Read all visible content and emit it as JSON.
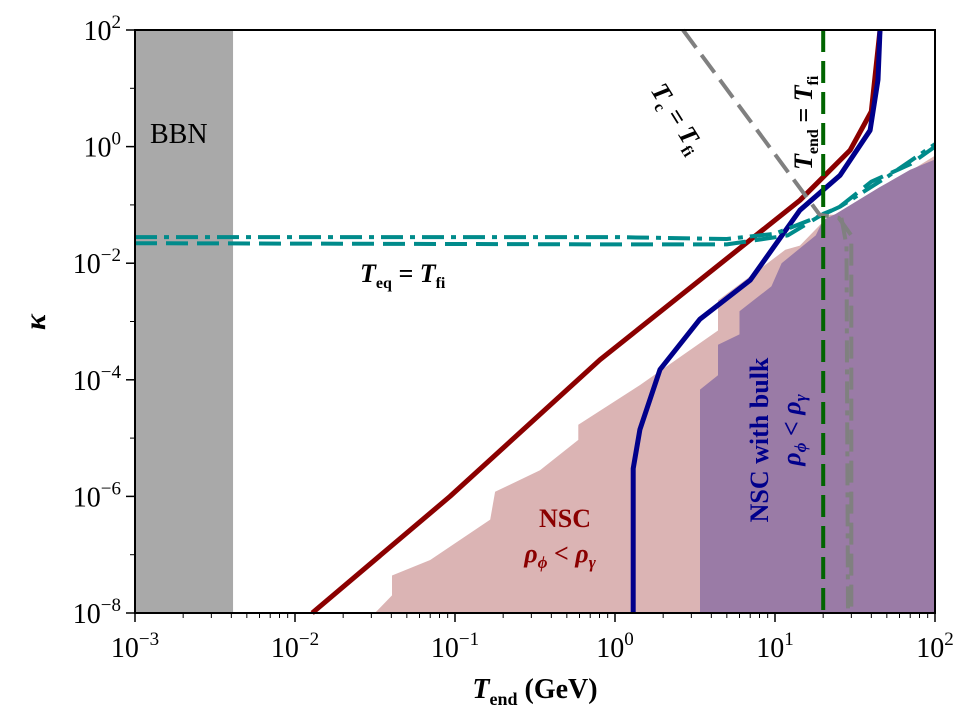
{
  "chart_data": {
    "type": "line",
    "xscale": "log",
    "yscale": "log",
    "xlim": [
      0.001,
      100
    ],
    "ylim": [
      1e-08,
      100
    ],
    "grid": false,
    "xlabel": {
      "base": "T",
      "sub": "end",
      "unit": " (GeV)"
    },
    "ylabel": "κ",
    "xticks": [
      {
        "value": 0.001,
        "base": "10",
        "exp": "−3"
      },
      {
        "value": 0.01,
        "base": "10",
        "exp": "−2"
      },
      {
        "value": 0.1,
        "base": "10",
        "exp": "−1"
      },
      {
        "value": 1,
        "base": "10",
        "exp": "0"
      },
      {
        "value": 10,
        "base": "10",
        "exp": "1"
      },
      {
        "value": 100,
        "base": "10",
        "exp": "2"
      }
    ],
    "yticks": [
      {
        "value": 100,
        "base": "10",
        "exp": "2"
      },
      {
        "value": 1,
        "base": "10",
        "exp": "0"
      },
      {
        "value": 0.01,
        "base": "10",
        "exp": "−2"
      },
      {
        "value": 0.0001,
        "base": "10",
        "exp": "−4"
      },
      {
        "value": 1e-06,
        "base": "10",
        "exp": "−6"
      },
      {
        "value": 1e-08,
        "base": "10",
        "exp": "−8"
      }
    ],
    "colors": {
      "bbn_band": "#a9a9a9",
      "nsc_region": "#dbb4b4",
      "nsc_bulk_region": "#9a7ba6",
      "red_curve": "#8b0000",
      "blue_curve": "#00008b",
      "teq_curves": "#008b8b",
      "tc_curves": "#808080",
      "tend_line": "#006400"
    },
    "regions": {
      "bbn": {
        "label": "BBN",
        "T_max": 0.0041
      },
      "nsc": {
        "label_line1": "NSC",
        "label_line2": "ρ",
        "label_sub_a": "ϕ",
        "label_op": " < ρ",
        "label_sub_b": "γ",
        "boundary": [
          [
            0.0316,
            1e-08
          ],
          [
            0.0404,
            2e-08
          ],
          [
            0.0404,
            4.4e-08
          ],
          [
            0.07,
            8.1e-08
          ],
          [
            0.166,
            4e-07
          ],
          [
            0.178,
            1.2e-06
          ],
          [
            0.34,
            2.8e-06
          ],
          [
            0.59,
            9.3e-06
          ],
          [
            0.59,
            1.7e-05
          ],
          [
            1.43,
            8.1e-05
          ],
          [
            4.4,
            0.0007
          ],
          [
            4.4,
            0.0023
          ],
          [
            11.6,
            0.017
          ],
          [
            14.3,
            0.02
          ],
          [
            22,
            0.068
          ],
          [
            25.5,
            0.068
          ],
          [
            100,
            0.7
          ],
          [
            100,
            1e-08
          ]
        ]
      },
      "nsc_bulk": {
        "label_line1": "NSC with bulk",
        "label_line2": "ρ",
        "label_sub_a": "ϕ",
        "label_op": " < ρ",
        "label_sub_b": "γ",
        "boundary": [
          [
            3.4,
            1e-08
          ],
          [
            3.4,
            6.8e-05
          ],
          [
            4.4,
            0.00012
          ],
          [
            4.4,
            0.0004
          ],
          [
            6,
            0.0006
          ],
          [
            6,
            0.0015
          ],
          [
            9.5,
            0.004
          ],
          [
            11,
            0.01
          ],
          [
            18,
            0.03
          ],
          [
            20,
            0.055
          ],
          [
            24,
            0.07
          ],
          [
            45,
            0.2
          ],
          [
            70,
            0.4
          ],
          [
            100,
            0.6
          ],
          [
            100,
            1e-08
          ]
        ]
      }
    },
    "series": [
      {
        "style": "solid",
        "color": "#8b0000",
        "points": [
          [
            0.0128,
            1e-08
          ],
          [
            0.093,
            1e-06
          ],
          [
            0.805,
            0.00022
          ],
          [
            14.3,
            0.12
          ],
          [
            29.5,
            0.87
          ],
          [
            40,
            4
          ],
          [
            45.3,
            100
          ]
        ]
      },
      {
        "style": "solid",
        "color": "#00008b",
        "points": [
          [
            1.3,
            1e-08
          ],
          [
            1.3,
            3e-06
          ],
          [
            1.43,
            1.4e-05
          ],
          [
            1.91,
            0.00015
          ],
          [
            3.4,
            0.0011
          ],
          [
            7,
            0.0051
          ],
          [
            14.3,
            0.081
          ],
          [
            25.5,
            0.32
          ],
          [
            39.3,
            1.9
          ],
          [
            44,
            14
          ],
          [
            45.3,
            100
          ]
        ]
      },
      {
        "style": "dashdot",
        "color": "#008b8b",
        "points": [
          [
            0.001,
            0.028
          ],
          [
            1,
            0.028
          ],
          [
            5,
            0.026
          ],
          [
            10,
            0.032
          ],
          [
            18,
            0.06
          ],
          [
            25.5,
            0.093
          ],
          [
            50,
            0.3
          ],
          [
            100,
            1.1
          ]
        ]
      },
      {
        "style": "dashed",
        "color": "#008b8b",
        "points": [
          [
            0.001,
            0.022
          ],
          [
            1,
            0.021
          ],
          [
            5,
            0.021
          ],
          [
            12,
            0.03
          ],
          [
            20,
            0.07
          ],
          [
            25,
            0.09
          ],
          [
            40,
            0.25
          ],
          [
            70,
            0.5
          ],
          [
            100,
            1.0
          ]
        ]
      },
      {
        "style": "dashed",
        "color": "#808080",
        "points": [
          [
            2.66,
            100
          ],
          [
            19,
            0.068
          ],
          [
            25,
            0.06
          ],
          [
            30,
            0.03
          ],
          [
            30,
            1e-08
          ]
        ]
      },
      {
        "style": "dashdot",
        "color": "#808080",
        "points": [
          [
            26,
            0.06
          ],
          [
            28,
            0.02
          ],
          [
            28.6,
            1e-08
          ]
        ]
      },
      {
        "style": "dashed",
        "color": "#006400",
        "points": [
          [
            20,
            100
          ],
          [
            20,
            1e-08
          ]
        ]
      }
    ],
    "annotations": {
      "tc": {
        "a": "T",
        "a_sub": "c",
        "mid": " = T",
        "b_sub": "fi"
      },
      "tend": {
        "a": "T",
        "a_sub": "end",
        "mid": " = T",
        "b_sub": "fi"
      },
      "teq": {
        "a": "T",
        "a_sub": "eq",
        "mid": " = T",
        "b_sub": "fi"
      }
    }
  }
}
